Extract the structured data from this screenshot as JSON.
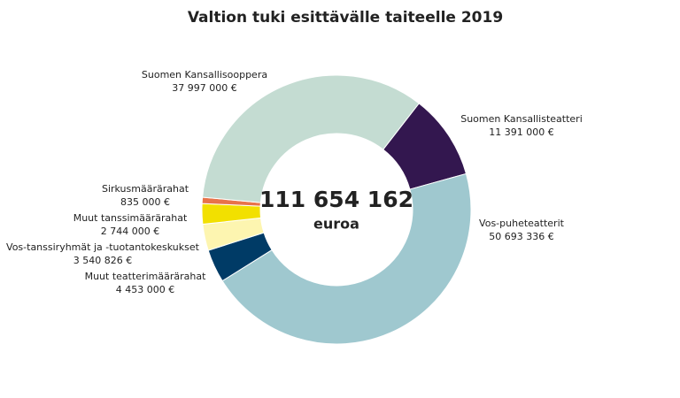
{
  "chart_data": {
    "type": "donut",
    "title": "Valtion tuki esittävälle taiteelle 2019",
    "center_text": "111 654 162",
    "center_unit": "euroa",
    "categories": [
      "Suomen Kansallisteatteri",
      "Vos-puheteatterit",
      "Muut teatterimäärärahat",
      "Vos-tanssiryhmät ja -tuotantokeskukset",
      "Muut tanssimäärärahat",
      "Sirkusmäärärahat",
      "Suomen Kansallisooppera"
    ],
    "values": [
      11391000,
      50693336,
      4453000,
      3540826,
      2744000,
      835000,
      37997000
    ],
    "value_labels": [
      "11 391 000 €",
      "50 693 336 €",
      "4 453 000 €",
      "3 540 826 €",
      "2 744 000 €",
      "835 000 €",
      "37 997 000 €"
    ],
    "colors": [
      "#33174f",
      "#9fc8cf",
      "#003b66",
      "#fdf5b0",
      "#f2e000",
      "#e8734a",
      "#c4dcd2"
    ]
  }
}
